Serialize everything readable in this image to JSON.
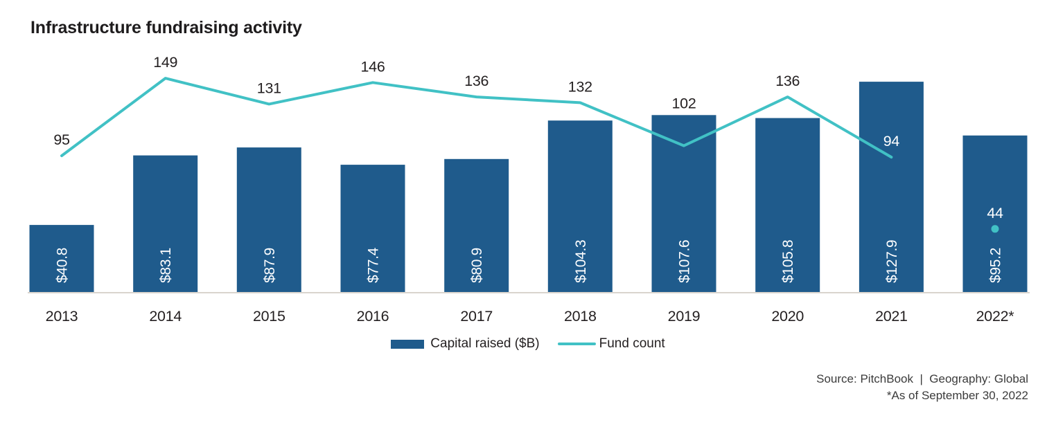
{
  "chart_data": {
    "type": "bar+line",
    "title": "Infrastructure fundraising activity",
    "categories": [
      "2013",
      "2014",
      "2015",
      "2016",
      "2017",
      "2018",
      "2019",
      "2020",
      "2021",
      "2022*"
    ],
    "series": [
      {
        "name": "Capital raised ($B)",
        "type": "bar",
        "values": [
          40.8,
          83.1,
          87.9,
          77.4,
          80.9,
          104.3,
          107.6,
          105.8,
          127.9,
          95.2
        ],
        "data_labels": [
          "$40.8",
          "$83.1",
          "$87.9",
          "$77.4",
          "$80.9",
          "$104.3",
          "$107.6",
          "$105.8",
          "$127.9",
          "$95.2"
        ],
        "color": "#1f5b8c"
      },
      {
        "name": "Fund count",
        "type": "line",
        "values": [
          95,
          149,
          131,
          146,
          136,
          132,
          102,
          136,
          94,
          44
        ],
        "data_labels": [
          "95",
          "149",
          "131",
          "146",
          "136",
          "132",
          "102",
          "136",
          "94",
          "44"
        ],
        "color": "#41c1c5",
        "last_point_dot_only": true
      }
    ],
    "legend_position": "bottom-center",
    "grid": false,
    "y_axes_hidden": true,
    "xlabel": "",
    "ylabel": ""
  },
  "footer": {
    "source_line": "Source: PitchBook  |  Geography: Global",
    "asof_line": "*As of September 30, 2022"
  },
  "colors": {
    "bar": "#1f5b8c",
    "line": "#41c1c5",
    "title_text": "#1e1c1d",
    "label_text": "#231f20",
    "bar_label_text": "#ffffff",
    "axis_line": "#d9d4cd",
    "source_text": "#3b3b3b",
    "background": "#ffffff"
  }
}
